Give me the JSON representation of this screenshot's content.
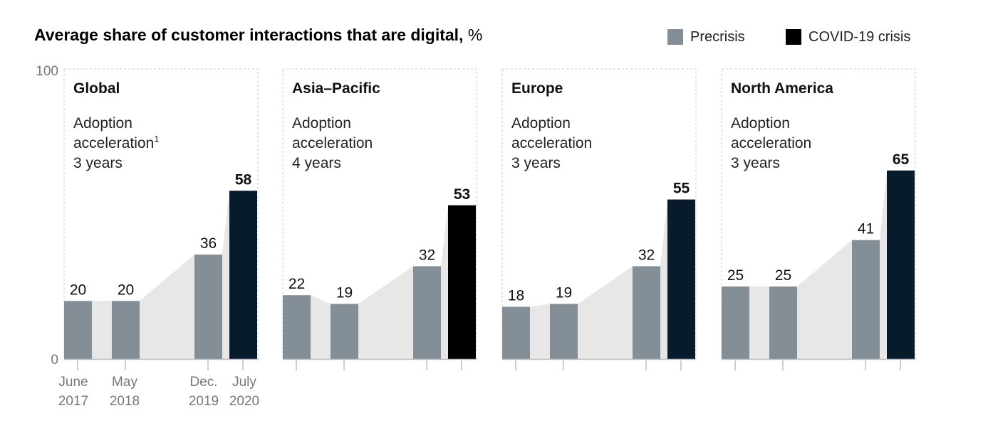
{
  "title": "Average share of customer interactions that are digital,",
  "title_unit": "%",
  "legend": {
    "placement": "top-right",
    "items": [
      {
        "label": "Precrisis",
        "color": "#848E96"
      },
      {
        "label": "COVID-19 crisis",
        "color": "#000000"
      }
    ]
  },
  "colors": {
    "precrisis": "#848E96",
    "covid_dark_navy": "#081B2C",
    "covid_black": "#000000",
    "area": "#E7E7E7",
    "panel_border": "#C9C9C9",
    "axis": "#BDBDBD"
  },
  "chart_data": {
    "type": "bar",
    "y_tick_labels": [
      "100",
      "0"
    ],
    "ylim": [
      0,
      100
    ],
    "grid": false,
    "categories": [
      {
        "line1": "June",
        "line2": "2017"
      },
      {
        "line1": "May",
        "line2": "2018"
      },
      {
        "line1": "Dec.",
        "line2": "2019"
      },
      {
        "line1": "July",
        "line2": "2020"
      }
    ],
    "panels": [
      {
        "name": "Global",
        "note_line1": "Adoption",
        "note_line2": "acceleration",
        "note_sup": "1",
        "note_line3": "3 years",
        "values": [
          20,
          20,
          36,
          58
        ],
        "covid_color": "covid_dark_navy"
      },
      {
        "name": "Asia–Pacific",
        "note_line1": "Adoption",
        "note_line2": "acceleration",
        "note_sup": "",
        "note_line3": "4 years",
        "values": [
          22,
          19,
          32,
          53
        ],
        "covid_color": "covid_black"
      },
      {
        "name": "Europe",
        "note_line1": "Adoption",
        "note_line2": "acceleration",
        "note_sup": "",
        "note_line3": "3 years",
        "values": [
          18,
          19,
          32,
          55
        ],
        "covid_color": "covid_dark_navy"
      },
      {
        "name": "North America",
        "note_line1": "Adoption",
        "note_line2": "acceleration",
        "note_sup": "",
        "note_line3": "3 years",
        "values": [
          25,
          25,
          41,
          65
        ],
        "covid_color": "covid_dark_navy"
      }
    ]
  }
}
